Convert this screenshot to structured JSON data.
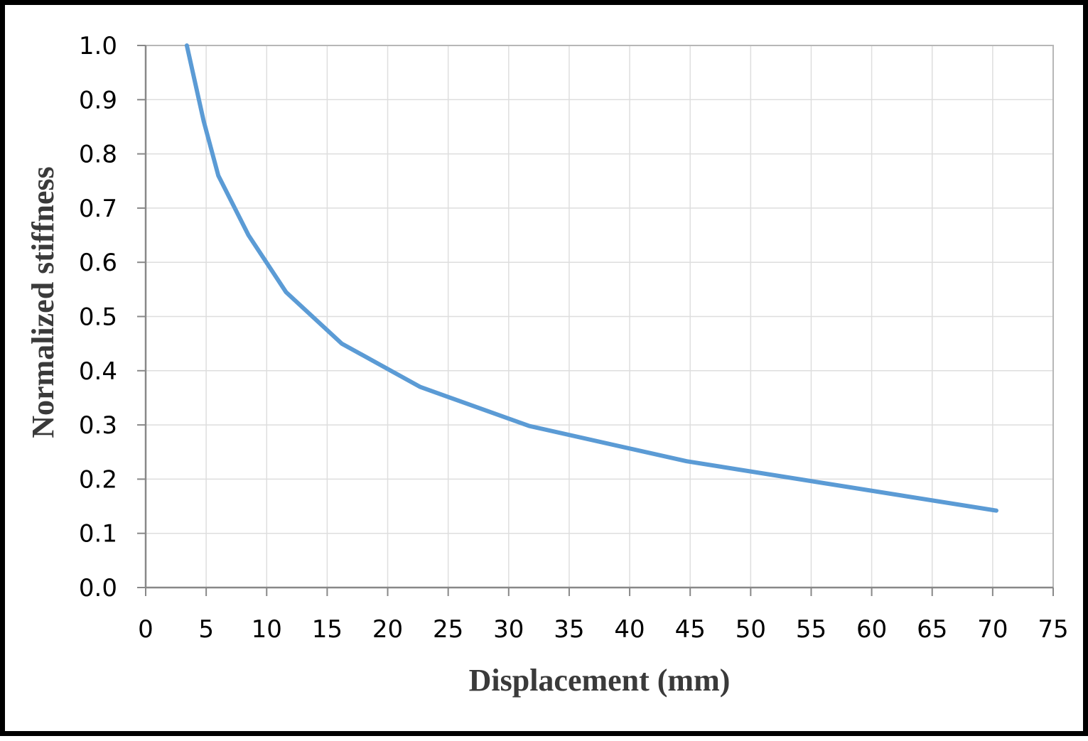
{
  "chart_data": {
    "type": "line",
    "title": "",
    "xlabel": "Displacement (mm)",
    "ylabel": "Normalized stiffness",
    "xlim": [
      0,
      75
    ],
    "ylim": [
      0,
      1
    ],
    "x_ticks": [
      "0",
      "5",
      "10",
      "15",
      "20",
      "25",
      "30",
      "35",
      "40",
      "45",
      "50",
      "55",
      "60",
      "65",
      "70",
      "75"
    ],
    "y_ticks": [
      "0.0",
      "0.1",
      "0.2",
      "0.3",
      "0.4",
      "0.5",
      "0.6",
      "0.7",
      "0.8",
      "0.9",
      "1.0"
    ],
    "grid": true,
    "line_color": "#5b9bd5",
    "series": [
      {
        "x": [
          3.4,
          4.8,
          6.0,
          8.5,
          11.6,
          16.2,
          22.7,
          31.7,
          44.7,
          70.3
        ],
        "y": [
          1.0,
          0.86,
          0.76,
          0.65,
          0.545,
          0.45,
          0.37,
          0.298,
          0.233,
          0.142
        ]
      }
    ]
  }
}
